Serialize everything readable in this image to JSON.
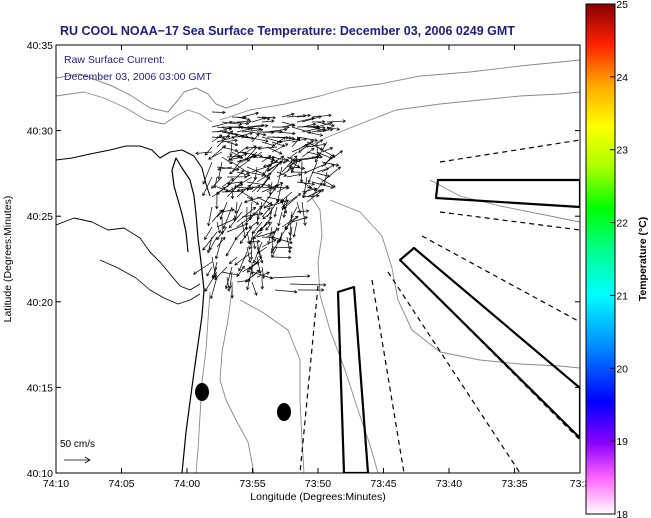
{
  "title": "RU COOL  NOAA−17  Sea Surface Temperature:  December 03, 2006 0249 GMT",
  "annotation": {
    "line1": "Raw Surface Current:",
    "line2": "December 03, 2006 03:00 GMT"
  },
  "scale_label": "50 cm/s",
  "axes": {
    "xlabel": "Longitude (Degrees:Minutes)",
    "ylabel": "Latitude (Degrees:Minutes)",
    "x_ticks": [
      "74:10",
      "74:05",
      "74:00",
      "73:55",
      "73:50",
      "73:45",
      "73:40",
      "73:35",
      "73:3"
    ],
    "y_ticks": [
      "40:35",
      "40:30",
      "40:25",
      "40:20",
      "40:15",
      "40:10"
    ]
  },
  "colorbar": {
    "label": "Temperature (°C)",
    "ticks": [
      "25",
      "24",
      "23",
      "22",
      "21",
      "20",
      "19",
      "18"
    ],
    "min": 18,
    "max": 25
  },
  "colors": {
    "title_text": "#1c1c8c",
    "annotation_text": "#1c1c8c",
    "land_outline": "#888888",
    "frame": "#000000"
  },
  "icons": {
    "current-vector": "arrow",
    "scale-vector": "arrow"
  }
}
